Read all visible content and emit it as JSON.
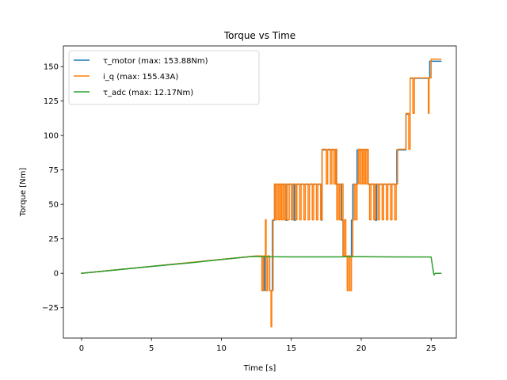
{
  "chart_data": {
    "type": "line",
    "title": "Torque vs Time",
    "xlabel": "Time [s]",
    "ylabel": "Torque [Nm]",
    "xlim": [
      -1.3,
      26.8
    ],
    "ylim": [
      -47,
      165
    ],
    "xticks": [
      0,
      5,
      10,
      15,
      20,
      25
    ],
    "xtick_labels": [
      "0",
      "5",
      "10",
      "15",
      "20",
      "25"
    ],
    "yticks": [
      -25,
      0,
      25,
      50,
      75,
      100,
      125,
      150
    ],
    "ytick_labels": [
      "−25",
      "0",
      "25",
      "50",
      "75",
      "100",
      "125",
      "150"
    ],
    "grid": false,
    "legend_position": "upper-left",
    "series": [
      {
        "name": "τ_motor (max: 153.88Nm)",
        "color": "#1f77b4",
        "points": [
          [
            0,
            0
          ],
          [
            12.5,
            12.5
          ],
          [
            12.9,
            12.5
          ],
          [
            12.9,
            -12.5
          ],
          [
            13.05,
            -12.5
          ],
          [
            13.05,
            12.5
          ],
          [
            13.15,
            12.5
          ],
          [
            13.15,
            -12.5
          ],
          [
            13.3,
            -12.5
          ],
          [
            13.3,
            12.5
          ],
          [
            13.45,
            12.5
          ],
          [
            13.45,
            -12.5
          ],
          [
            13.65,
            -12.5
          ],
          [
            13.65,
            38.5
          ],
          [
            13.8,
            38.5
          ],
          [
            13.8,
            64.5
          ],
          [
            14.6,
            64.5
          ],
          [
            14.6,
            38.5
          ],
          [
            14.7,
            38.5
          ],
          [
            14.7,
            64.5
          ],
          [
            15.2,
            64.5
          ],
          [
            15.2,
            38.5
          ],
          [
            15.3,
            38.5
          ],
          [
            15.3,
            64.5
          ],
          [
            17.15,
            64.5
          ],
          [
            17.15,
            38.5
          ],
          [
            17.2,
            38.5
          ],
          [
            17.2,
            89.5
          ],
          [
            18.2,
            89.5
          ],
          [
            18.2,
            64.5
          ],
          [
            18.6,
            64.5
          ],
          [
            18.6,
            38.5
          ],
          [
            18.7,
            38.5
          ],
          [
            18.7,
            12.5
          ],
          [
            19.3,
            12.5
          ],
          [
            19.3,
            38.5
          ],
          [
            19.4,
            38.5
          ],
          [
            19.4,
            64.5
          ],
          [
            19.7,
            64.5
          ],
          [
            19.7,
            89.5
          ],
          [
            20.5,
            89.5
          ],
          [
            20.5,
            64.5
          ],
          [
            21.0,
            64.5
          ],
          [
            21.0,
            38.5
          ],
          [
            21.1,
            38.5
          ],
          [
            21.1,
            64.5
          ],
          [
            22.55,
            64.5
          ],
          [
            22.55,
            89.5
          ],
          [
            23.2,
            89.5
          ],
          [
            23.2,
            115.5
          ],
          [
            23.5,
            115.5
          ],
          [
            23.5,
            141.5
          ],
          [
            24.9,
            141.5
          ],
          [
            24.9,
            153.9
          ],
          [
            25.7,
            153.9
          ]
        ]
      },
      {
        "name": "i_q (max: 155.43A)",
        "color": "#ff7f0e",
        "points": [
          [
            0,
            0
          ],
          [
            12.5,
            12.6
          ],
          [
            12.9,
            12.6
          ],
          [
            12.9,
            -12.6
          ],
          [
            13.0,
            -12.6
          ],
          [
            13.0,
            12.6
          ],
          [
            13.15,
            12.6
          ],
          [
            13.15,
            38.8
          ],
          [
            13.2,
            38.8
          ],
          [
            13.2,
            -12.6
          ],
          [
            13.3,
            -12.6
          ],
          [
            13.3,
            12.6
          ],
          [
            13.45,
            12.6
          ],
          [
            13.45,
            -12.6
          ],
          [
            13.55,
            -12.6
          ],
          [
            13.55,
            -38.8
          ],
          [
            13.6,
            -38.8
          ],
          [
            13.6,
            -12.6
          ],
          [
            13.7,
            -12.6
          ],
          [
            13.7,
            38.8
          ],
          [
            13.8,
            38.8
          ],
          [
            13.8,
            64.8
          ],
          [
            13.9,
            64.8
          ],
          [
            13.9,
            38.8
          ],
          [
            14.0,
            38.8
          ],
          [
            14.0,
            64.8
          ],
          [
            14.1,
            64.8
          ],
          [
            14.1,
            38.8
          ],
          [
            14.2,
            38.8
          ],
          [
            14.2,
            64.8
          ],
          [
            14.3,
            64.8
          ],
          [
            14.3,
            38.8
          ],
          [
            14.4,
            38.8
          ],
          [
            14.4,
            64.8
          ],
          [
            14.5,
            64.8
          ],
          [
            14.5,
            38.8
          ],
          [
            14.6,
            38.8
          ],
          [
            14.6,
            64.8
          ],
          [
            14.7,
            64.8
          ],
          [
            14.7,
            38.8
          ],
          [
            14.85,
            38.8
          ],
          [
            14.85,
            64.8
          ],
          [
            15.0,
            64.8
          ],
          [
            15.0,
            38.8
          ],
          [
            15.1,
            38.8
          ],
          [
            15.1,
            64.8
          ],
          [
            15.3,
            64.8
          ],
          [
            15.3,
            38.8
          ],
          [
            15.4,
            38.8
          ],
          [
            15.4,
            64.8
          ],
          [
            15.6,
            64.8
          ],
          [
            15.6,
            38.8
          ],
          [
            15.7,
            38.8
          ],
          [
            15.7,
            64.8
          ],
          [
            15.9,
            64.8
          ],
          [
            15.9,
            38.8
          ],
          [
            16.0,
            38.8
          ],
          [
            16.0,
            64.8
          ],
          [
            16.2,
            64.8
          ],
          [
            16.2,
            38.8
          ],
          [
            16.3,
            38.8
          ],
          [
            16.3,
            64.8
          ],
          [
            16.5,
            64.8
          ],
          [
            16.5,
            38.8
          ],
          [
            16.6,
            38.8
          ],
          [
            16.6,
            64.8
          ],
          [
            16.8,
            64.8
          ],
          [
            16.8,
            38.8
          ],
          [
            16.9,
            38.8
          ],
          [
            16.9,
            64.8
          ],
          [
            17.1,
            64.8
          ],
          [
            17.1,
            38.8
          ],
          [
            17.2,
            38.8
          ],
          [
            17.2,
            90.0
          ],
          [
            17.5,
            90.0
          ],
          [
            17.5,
            64.8
          ],
          [
            17.6,
            64.8
          ],
          [
            17.6,
            90.0
          ],
          [
            17.8,
            90.0
          ],
          [
            17.8,
            64.8
          ],
          [
            17.9,
            64.8
          ],
          [
            17.9,
            90.0
          ],
          [
            18.05,
            90.0
          ],
          [
            18.05,
            64.8
          ],
          [
            18.15,
            64.8
          ],
          [
            18.15,
            90.0
          ],
          [
            18.25,
            90.0
          ],
          [
            18.25,
            38.8
          ],
          [
            18.35,
            38.8
          ],
          [
            18.35,
            64.8
          ],
          [
            18.45,
            64.8
          ],
          [
            18.45,
            38.8
          ],
          [
            18.55,
            38.8
          ],
          [
            18.55,
            64.8
          ],
          [
            18.7,
            64.8
          ],
          [
            18.7,
            12.6
          ],
          [
            18.8,
            12.6
          ],
          [
            18.8,
            38.8
          ],
          [
            18.9,
            38.8
          ],
          [
            18.9,
            12.6
          ],
          [
            19.0,
            12.6
          ],
          [
            19.0,
            -12.6
          ],
          [
            19.1,
            -12.6
          ],
          [
            19.1,
            12.6
          ],
          [
            19.2,
            12.6
          ],
          [
            19.2,
            -12.6
          ],
          [
            19.3,
            -12.6
          ],
          [
            19.3,
            12.6
          ],
          [
            19.4,
            12.6
          ],
          [
            19.4,
            38.8
          ],
          [
            19.5,
            38.8
          ],
          [
            19.5,
            64.8
          ],
          [
            19.6,
            64.8
          ],
          [
            19.6,
            38.8
          ],
          [
            19.7,
            38.8
          ],
          [
            19.7,
            64.8
          ],
          [
            19.8,
            64.8
          ],
          [
            19.8,
            90.0
          ],
          [
            19.9,
            90.0
          ],
          [
            19.9,
            64.8
          ],
          [
            20.0,
            64.8
          ],
          [
            20.0,
            90.0
          ],
          [
            20.1,
            90.0
          ],
          [
            20.1,
            64.8
          ],
          [
            20.2,
            64.8
          ],
          [
            20.2,
            90.0
          ],
          [
            20.3,
            90.0
          ],
          [
            20.3,
            64.8
          ],
          [
            20.4,
            64.8
          ],
          [
            20.4,
            90.0
          ],
          [
            20.5,
            90.0
          ],
          [
            20.5,
            64.8
          ],
          [
            20.6,
            64.8
          ],
          [
            20.6,
            38.8
          ],
          [
            20.7,
            38.8
          ],
          [
            20.7,
            64.8
          ],
          [
            20.9,
            64.8
          ],
          [
            20.9,
            38.8
          ],
          [
            21.0,
            38.8
          ],
          [
            21.0,
            64.8
          ],
          [
            21.2,
            64.8
          ],
          [
            21.2,
            38.8
          ],
          [
            21.3,
            38.8
          ],
          [
            21.3,
            64.8
          ],
          [
            21.5,
            64.8
          ],
          [
            21.5,
            38.8
          ],
          [
            21.6,
            38.8
          ],
          [
            21.6,
            64.8
          ],
          [
            21.8,
            64.8
          ],
          [
            21.8,
            38.8
          ],
          [
            21.9,
            38.8
          ],
          [
            21.9,
            64.8
          ],
          [
            22.1,
            64.8
          ],
          [
            22.1,
            38.8
          ],
          [
            22.2,
            38.8
          ],
          [
            22.2,
            64.8
          ],
          [
            22.4,
            64.8
          ],
          [
            22.4,
            38.8
          ],
          [
            22.5,
            38.8
          ],
          [
            22.5,
            64.8
          ],
          [
            22.6,
            64.8
          ],
          [
            22.6,
            90.0
          ],
          [
            23.2,
            90.0
          ],
          [
            23.2,
            116.0
          ],
          [
            23.4,
            116.0
          ],
          [
            23.4,
            90.0
          ],
          [
            23.5,
            90.0
          ],
          [
            23.5,
            141.8
          ],
          [
            23.7,
            141.8
          ],
          [
            23.7,
            116.0
          ],
          [
            23.8,
            116.0
          ],
          [
            23.8,
            141.8
          ],
          [
            24.8,
            141.8
          ],
          [
            24.8,
            116.0
          ],
          [
            24.85,
            116.0
          ],
          [
            24.85,
            141.8
          ],
          [
            25.0,
            141.8
          ],
          [
            25.0,
            155.4
          ],
          [
            25.7,
            155.4
          ]
        ]
      },
      {
        "name": "τ_adc (max: 12.17Nm)",
        "color": "#2ca02c",
        "points": [
          [
            0,
            0
          ],
          [
            2,
            2
          ],
          [
            5,
            5
          ],
          [
            8,
            7.8
          ],
          [
            10,
            10
          ],
          [
            12,
            12
          ],
          [
            12.5,
            12.17
          ],
          [
            13,
            12.0
          ],
          [
            15,
            11.9
          ],
          [
            17,
            11.9
          ],
          [
            18.5,
            11.9
          ],
          [
            19,
            12.0
          ],
          [
            20,
            12.0
          ],
          [
            22,
            11.9
          ],
          [
            24,
            11.8
          ],
          [
            25.0,
            11.8
          ],
          [
            25.1,
            5.0
          ],
          [
            25.2,
            -1.2
          ],
          [
            25.3,
            0
          ],
          [
            25.7,
            0
          ]
        ]
      }
    ]
  }
}
